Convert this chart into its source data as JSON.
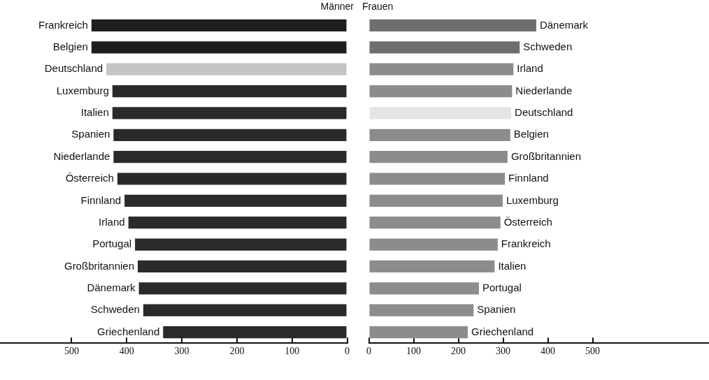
{
  "chart_data": [
    {
      "type": "bar",
      "orientation": "horizontal",
      "title": "Männer",
      "categories": [
        "Frankreich",
        "Belgien",
        "Deutschland",
        "Luxemburg",
        "Italien",
        "Spanien",
        "Niederlande",
        "Österreich",
        "Finnland",
        "Irland",
        "Portugal",
        "Großbritannien",
        "Dänemark",
        "Schweden",
        "Griechenland"
      ],
      "values": [
        464,
        464,
        437,
        426,
        426,
        424,
        424,
        417,
        404,
        397,
        385,
        380,
        378,
        370,
        334
      ],
      "colors": [
        "#1e1e1e",
        "#1e1e1e",
        "#c4c4c4",
        "#2a2a2a",
        "#2a2a2a",
        "#2a2a2a",
        "#2a2a2a",
        "#2a2a2a",
        "#2a2a2a",
        "#2a2a2a",
        "#2a2a2a",
        "#2a2a2a",
        "#2a2a2a",
        "#2a2a2a",
        "#2a2a2a"
      ],
      "xlim": [
        630,
        0
      ],
      "xticks": [
        500,
        400,
        300,
        200,
        100,
        0
      ],
      "grid": false,
      "legend": false
    },
    {
      "type": "bar",
      "orientation": "horizontal",
      "title": "Frauen",
      "categories": [
        "Dänemark",
        "Schweden",
        "Irland",
        "Niederlande",
        "Deutschland",
        "Belgien",
        "Großbritannien",
        "Finnland",
        "Luxemburg",
        "Österreich",
        "Frankreich",
        "Italien",
        "Portugal",
        "Spanien",
        "Griechenland"
      ],
      "values": [
        374,
        337,
        323,
        320,
        318,
        316,
        310,
        304,
        299,
        294,
        288,
        281,
        246,
        234,
        221
      ],
      "colors": [
        "#6e6e6e",
        "#6e6e6e",
        "#8c8c8c",
        "#8c8c8c",
        "#e4e4e4",
        "#8c8c8c",
        "#8c8c8c",
        "#8c8c8c",
        "#8c8c8c",
        "#8c8c8c",
        "#8c8c8c",
        "#8c8c8c",
        "#8c8c8c",
        "#8c8c8c",
        "#8c8c8c"
      ],
      "xlim": [
        0,
        760
      ],
      "xticks": [
        0,
        100,
        200,
        300,
        400,
        500
      ],
      "grid": false,
      "legend": false
    }
  ]
}
